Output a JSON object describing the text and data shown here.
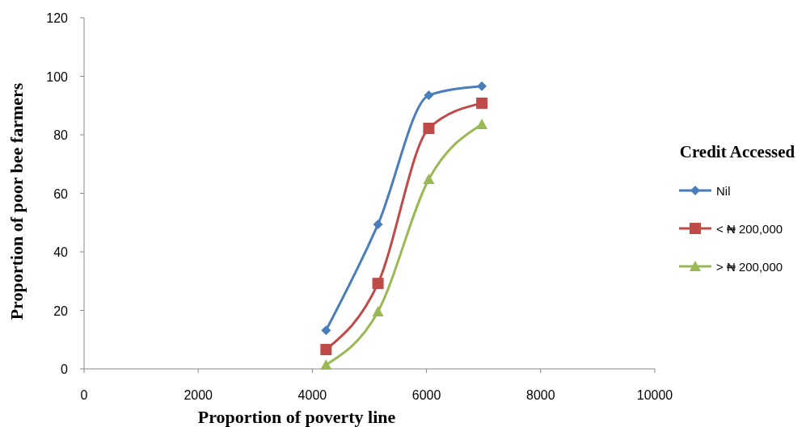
{
  "chart_data": {
    "type": "line",
    "xlabel": "Proportion of  poverty line",
    "ylabel": "Proportion of poor  bee farmers",
    "legend_title": "Credit Accessed",
    "legend": "right",
    "grid": false,
    "xlim": [
      0,
      10000
    ],
    "xticks": [
      0,
      2000,
      4000,
      6000,
      8000,
      10000
    ],
    "ylim": [
      0,
      120
    ],
    "yticks": [
      0,
      20,
      40,
      60,
      80,
      100,
      120
    ],
    "series": [
      {
        "name": "Nil",
        "color": "#4a7ebb",
        "marker": "diamond",
        "x": [
          4240,
          5150,
          6040,
          6970
        ],
        "values": [
          13.2,
          49.4,
          93.5,
          96.6
        ]
      },
      {
        "name": "< ₦ 200,000",
        "color": "#be4b48",
        "marker": "square",
        "x": [
          4240,
          5150,
          6040,
          6970
        ],
        "values": [
          6.6,
          29.2,
          82.2,
          90.8
        ]
      },
      {
        "name": "> ₦ 200,000",
        "color": "#98b954",
        "marker": "triangle",
        "x": [
          4240,
          5150,
          6040,
          6970
        ],
        "values": [
          1.4,
          19.6,
          64.8,
          83.6
        ]
      }
    ]
  }
}
